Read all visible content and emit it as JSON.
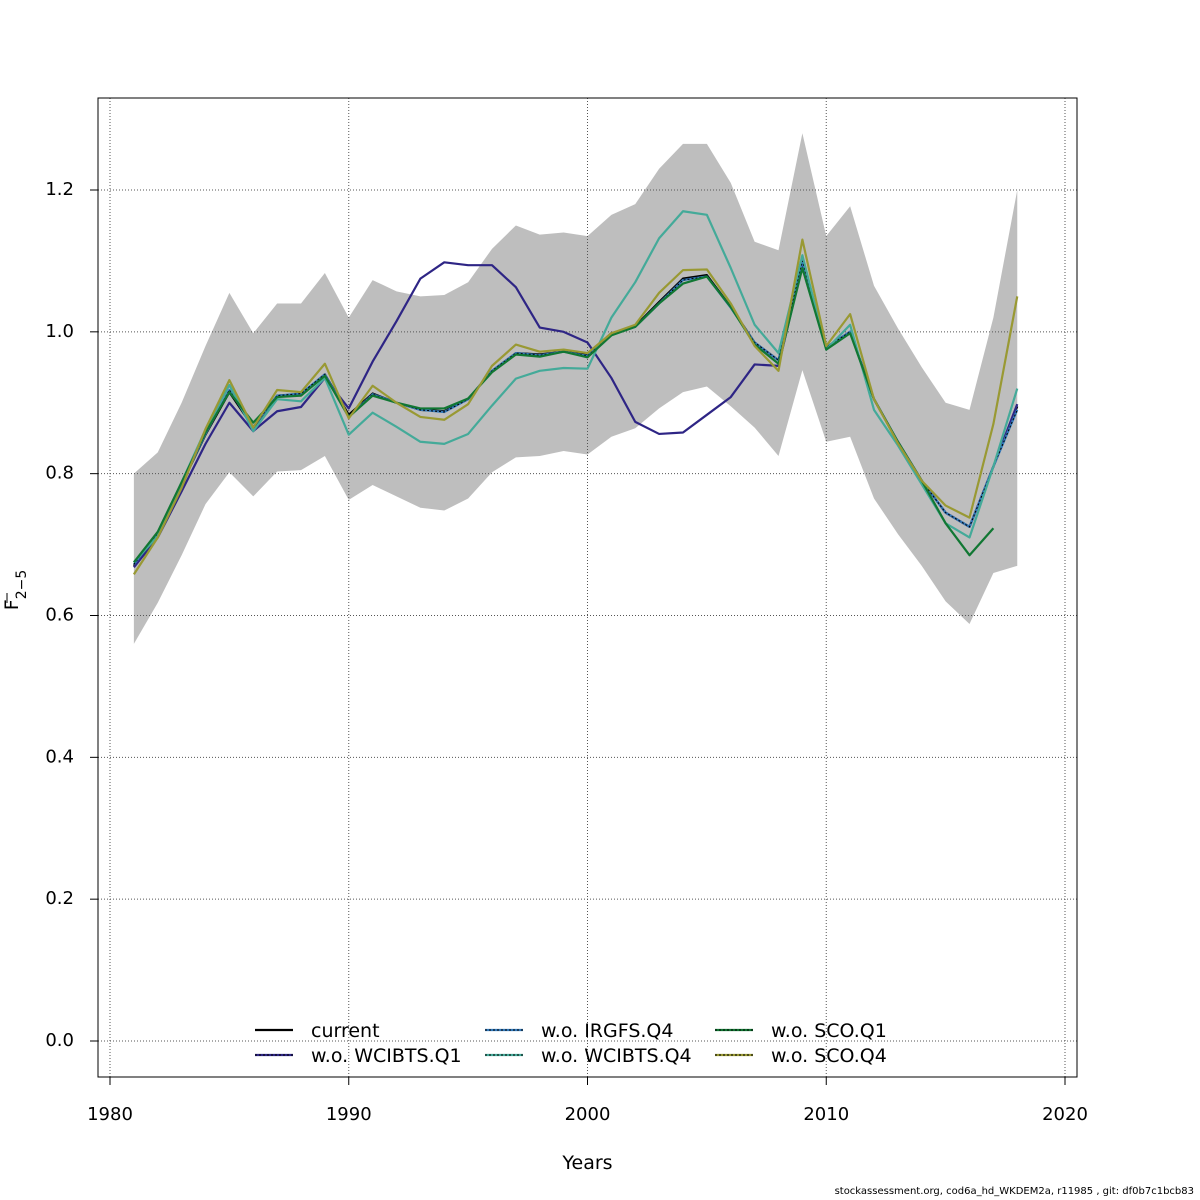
{
  "chart_data": {
    "type": "line",
    "xlabel": "Years",
    "ylabel_main": "F",
    "ylabel_sub": "2−5",
    "xlim": [
      1980,
      2020
    ],
    "ylim": [
      0.0,
      1.3
    ],
    "xticks": [
      1980,
      1990,
      2000,
      2010,
      2020
    ],
    "yticks": [
      0.0,
      0.2,
      0.4,
      0.6,
      0.8,
      1.0,
      1.2
    ],
    "grid": true,
    "legend_position": "bottom-center",
    "confidence_band": {
      "x": [
        1981,
        1982,
        1983,
        1984,
        1985,
        1986,
        1987,
        1988,
        1989,
        1990,
        1991,
        1992,
        1993,
        1994,
        1995,
        1996,
        1997,
        1998,
        1999,
        2000,
        2001,
        2002,
        2003,
        2004,
        2005,
        2006,
        2007,
        2008,
        2009,
        2010,
        2011,
        2012,
        2013,
        2014,
        2015,
        2016,
        2017,
        2018
      ],
      "upper": [
        0.8,
        0.83,
        0.9,
        0.98,
        1.055,
        0.998,
        1.04,
        1.04,
        1.083,
        1.02,
        1.073,
        1.057,
        1.05,
        1.052,
        1.07,
        1.117,
        1.15,
        1.137,
        1.14,
        1.135,
        1.165,
        1.18,
        1.23,
        1.265,
        1.265,
        1.21,
        1.127,
        1.115,
        1.28,
        1.135,
        1.177,
        1.065,
        1.005,
        0.95,
        0.9,
        0.89,
        1.02,
        1.2
      ],
      "lower": [
        0.56,
        0.618,
        0.685,
        0.757,
        0.802,
        0.768,
        0.803,
        0.805,
        0.825,
        0.763,
        0.784,
        0.768,
        0.752,
        0.748,
        0.765,
        0.802,
        0.823,
        0.825,
        0.832,
        0.827,
        0.852,
        0.864,
        0.892,
        0.915,
        0.923,
        0.895,
        0.865,
        0.825,
        0.946,
        0.845,
        0.852,
        0.765,
        0.715,
        0.67,
        0.62,
        0.588,
        0.66,
        0.67
      ],
      "color": "#bebebe"
    },
    "series": [
      {
        "name": "current",
        "color": "#000000",
        "dashed": false,
        "x": [
          1981,
          1982,
          1983,
          1984,
          1985,
          1986,
          1987,
          1988,
          1989,
          1990,
          1991,
          1992,
          1993,
          1994,
          1995,
          1996,
          1997,
          1998,
          1999,
          2000,
          2001,
          2002,
          2003,
          2004,
          2005,
          2006,
          2007,
          2008,
          2009,
          2010,
          2011,
          2012,
          2013,
          2014,
          2015,
          2016,
          2017,
          2018
        ],
        "values": [
          0.67,
          0.715,
          0.785,
          0.855,
          0.915,
          0.865,
          0.91,
          0.912,
          0.94,
          0.883,
          0.913,
          0.9,
          0.89,
          0.888,
          0.905,
          0.945,
          0.97,
          0.968,
          0.972,
          0.968,
          0.998,
          1.008,
          1.042,
          1.075,
          1.08,
          1.035,
          0.985,
          0.96,
          1.095,
          0.978,
          1.0,
          0.905,
          0.845,
          0.79,
          0.745,
          0.725,
          0.81,
          0.895
        ]
      },
      {
        "name": "w.o. WCIBTS.Q1",
        "color": "#2e2585",
        "dashed": false,
        "x": [
          1981,
          1982,
          1983,
          1984,
          1985,
          1986,
          1987,
          1988,
          1989,
          1990,
          1991,
          1992,
          1993,
          1994,
          1995,
          1996,
          1997,
          1998,
          1999,
          2000,
          2001,
          2002,
          2003,
          2004,
          2005,
          2006,
          2007,
          2008,
          2009,
          2010,
          2011,
          2012,
          2013,
          2014,
          2015,
          2016,
          2017,
          2018
        ],
        "values": [
          0.668,
          0.71,
          0.775,
          0.842,
          0.9,
          0.86,
          0.888,
          0.894,
          0.935,
          0.892,
          0.958,
          1.015,
          1.075,
          1.098,
          1.094,
          1.094,
          1.063,
          1.006,
          1.0,
          0.985,
          0.935,
          0.873,
          0.856,
          0.858,
          0.883,
          0.908,
          0.954,
          0.952,
          1.095,
          0.978,
          1.0,
          0.905,
          0.845,
          0.79,
          0.745,
          0.725,
          0.81,
          0.898
        ]
      },
      {
        "name": "w.o. IRGFS.Q4",
        "color": "#337abb",
        "dashed": true,
        "x": [
          1981,
          1982,
          1983,
          1984,
          1985,
          1986,
          1987,
          1988,
          1989,
          1990,
          1991,
          1992,
          1993,
          1994,
          1995,
          1996,
          1997,
          1998,
          1999,
          2000,
          2001,
          2002,
          2003,
          2004,
          2005,
          2006,
          2007,
          2008,
          2009,
          2010,
          2011,
          2012,
          2013,
          2014,
          2015,
          2016,
          2017,
          2018
        ],
        "values": [
          0.672,
          0.716,
          0.786,
          0.856,
          0.918,
          0.866,
          0.91,
          0.913,
          0.94,
          0.88,
          0.912,
          0.9,
          0.89,
          0.887,
          0.905,
          0.945,
          0.97,
          0.967,
          0.972,
          0.966,
          0.996,
          1.007,
          1.04,
          1.073,
          1.078,
          1.034,
          0.985,
          0.96,
          1.1,
          0.978,
          1.0,
          0.905,
          0.845,
          0.79,
          0.745,
          0.725,
          0.81,
          0.89
        ]
      },
      {
        "name": "w.o. WCIBTS.Q4",
        "color": "#44aa99",
        "dashed": false,
        "x": [
          1981,
          1982,
          1983,
          1984,
          1985,
          1986,
          1987,
          1988,
          1989,
          1990,
          1991,
          1992,
          1993,
          1994,
          1995,
          1996,
          1997,
          1998,
          1999,
          2000,
          2001,
          2002,
          2003,
          2004,
          2005,
          2006,
          2007,
          2008,
          2009,
          2010,
          2011,
          2012,
          2013,
          2014,
          2015,
          2016,
          2017,
          2018
        ],
        "values": [
          0.675,
          0.712,
          0.788,
          0.862,
          0.925,
          0.86,
          0.905,
          0.902,
          0.935,
          0.855,
          0.886,
          0.866,
          0.845,
          0.842,
          0.856,
          0.896,
          0.934,
          0.945,
          0.949,
          0.948,
          1.02,
          1.07,
          1.132,
          1.17,
          1.165,
          1.09,
          1.01,
          0.97,
          1.108,
          0.975,
          1.01,
          0.89,
          0.84,
          0.785,
          0.73,
          0.71,
          0.81,
          0.92
        ]
      },
      {
        "name": "w.o. SCO.Q1",
        "color": "#117733",
        "dashed": false,
        "x": [
          1981,
          1982,
          1983,
          1984,
          1985,
          1986,
          1987,
          1988,
          1989,
          1990,
          1991,
          1992,
          1993,
          1994,
          1995,
          1996,
          1997,
          1998,
          1999,
          2000,
          2001,
          2002,
          2003,
          2004,
          2005,
          2006,
          2007,
          2008,
          2009,
          2010,
          2011,
          2012,
          2013,
          2014,
          2015,
          2016,
          2017
        ],
        "values": [
          0.675,
          0.718,
          0.788,
          0.858,
          0.915,
          0.872,
          0.908,
          0.91,
          0.938,
          0.88,
          0.91,
          0.9,
          0.892,
          0.892,
          0.906,
          0.943,
          0.968,
          0.965,
          0.972,
          0.964,
          0.995,
          1.007,
          1.04,
          1.068,
          1.078,
          1.035,
          0.982,
          0.955,
          1.09,
          0.975,
          0.998,
          0.905,
          0.845,
          0.79,
          0.73,
          0.685,
          0.723
        ]
      },
      {
        "name": "w.o. SCO.Q4",
        "color": "#999933",
        "dashed": false,
        "x": [
          1981,
          1982,
          1983,
          1984,
          1985,
          1986,
          1987,
          1988,
          1989,
          1990,
          1991,
          1992,
          1993,
          1994,
          1995,
          1996,
          1997,
          1998,
          1999,
          2000,
          2001,
          2002,
          2003,
          2004,
          2005,
          2006,
          2007,
          2008,
          2009,
          2010,
          2011,
          2012,
          2013,
          2014,
          2015,
          2016,
          2017,
          2018
        ],
        "values": [
          0.658,
          0.71,
          0.78,
          0.863,
          0.932,
          0.865,
          0.918,
          0.915,
          0.955,
          0.878,
          0.924,
          0.9,
          0.88,
          0.876,
          0.898,
          0.952,
          0.982,
          0.972,
          0.975,
          0.97,
          0.998,
          1.01,
          1.055,
          1.087,
          1.088,
          1.04,
          0.98,
          0.945,
          1.13,
          0.98,
          1.025,
          0.905,
          0.843,
          0.79,
          0.755,
          0.738,
          0.87,
          1.05
        ]
      }
    ]
  },
  "footer": "stockassessment.org, cod6a_hd_WKDEM2a, r11985 , git: df0b7c1bcb83"
}
